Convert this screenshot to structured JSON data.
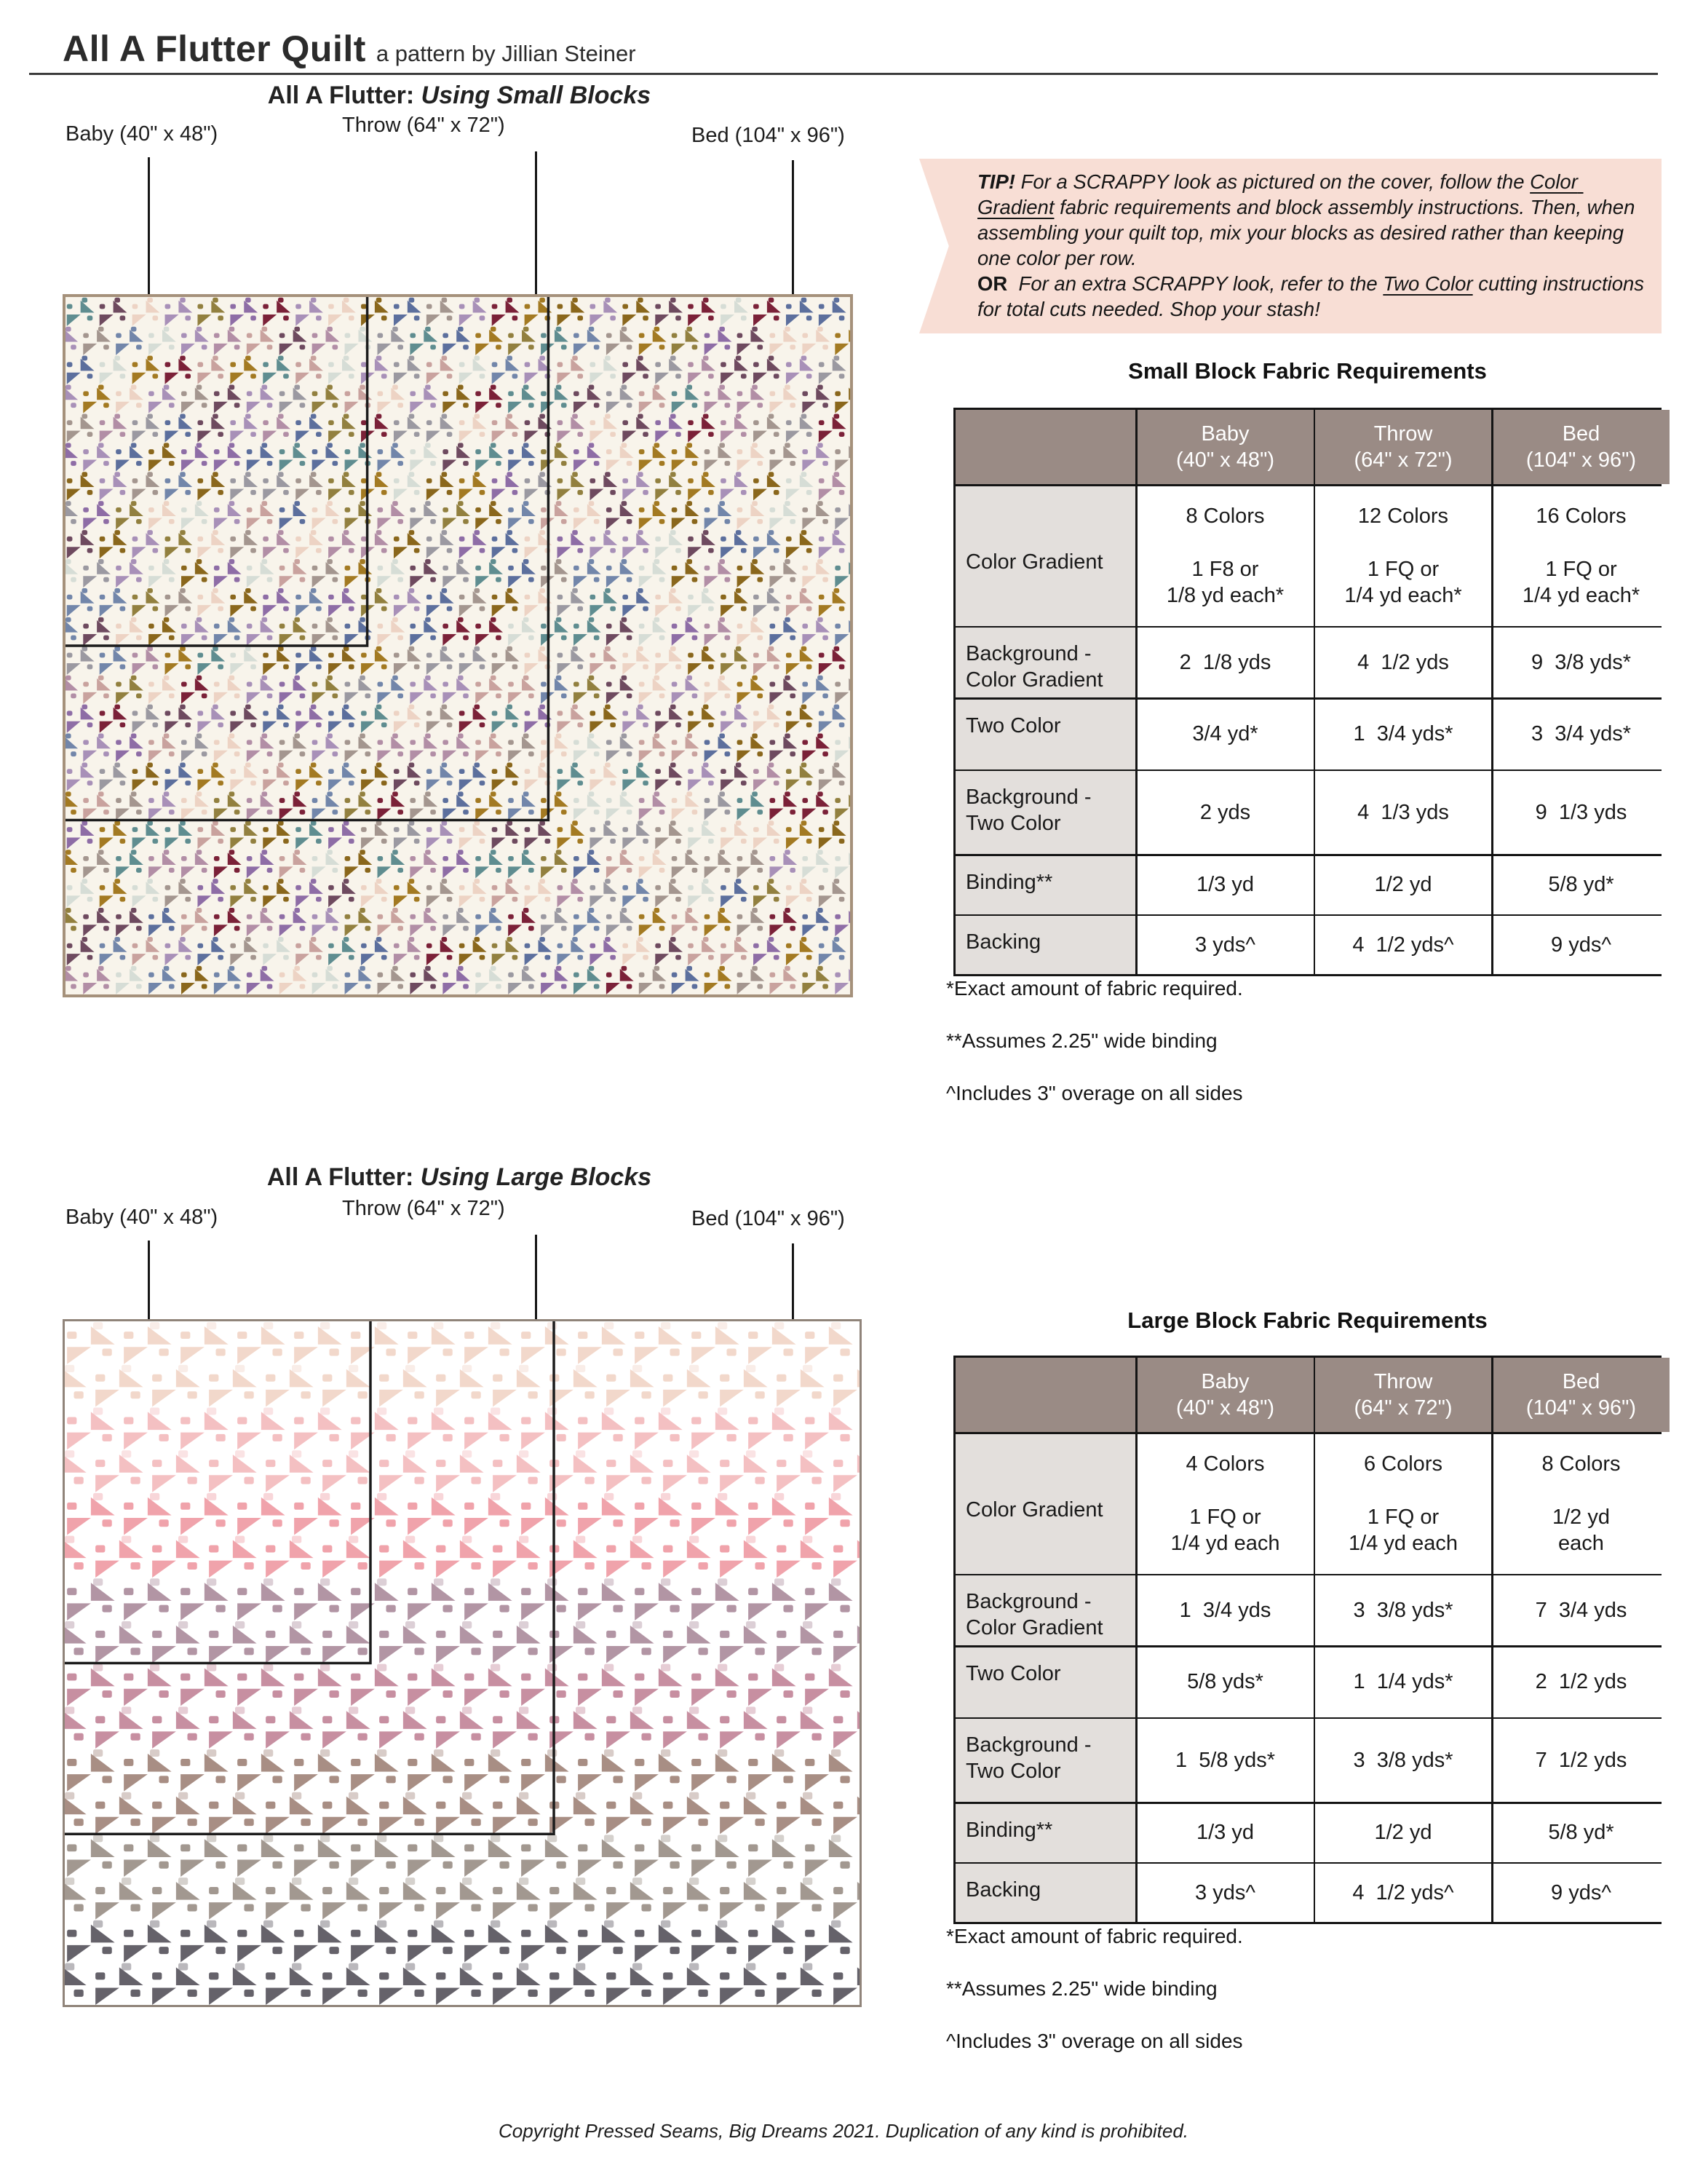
{
  "page": {
    "title": "All A Flutter Quilt",
    "subtitle": "a pattern by Jillian Steiner",
    "footer": "Copyright Pressed Seams, Big Dreams 2021. Duplication of any kind is prohibited."
  },
  "tip": {
    "bg": "#f8ded5",
    "segments": [
      {
        "text": "TIP!",
        "bold": true,
        "italic": true
      },
      {
        "text": " For a SCRAPPY look as pictured on the cover, follow the ",
        "italic": true
      },
      {
        "text": "Color Gradient",
        "italic": true,
        "underline": true
      },
      {
        "text": " fabric requirements and block assembly instructions. Then, when assembling your quilt top, mix your blocks as desired rather than keeping one color per row.\n",
        "italic": true
      },
      {
        "text": "OR",
        "bold": true
      },
      {
        "text": "  For an extra SCRAPPY look, refer to the ",
        "italic": true
      },
      {
        "text": "Two Color",
        "italic": true,
        "underline": true
      },
      {
        "text": " cutting instructions for total cuts needed. Shop your stash!",
        "italic": true
      }
    ]
  },
  "sections": {
    "small": {
      "heading_prefix": "All A Flutter: ",
      "heading_em": "Using Small Blocks",
      "labels": {
        "baby": "Baby (40\" x 48\")",
        "throw": "Throw (64\" x 72\")",
        "bed": "Bed (104\" x 96\")"
      }
    },
    "large": {
      "heading_prefix": "All A Flutter: ",
      "heading_em": "Using Large Blocks",
      "labels": {
        "baby": "Baby (40\" x 48\")",
        "throw": "Throw (64\" x 72\")",
        "bed": "Bed (104\" x 96\")"
      }
    }
  },
  "tables": {
    "small": {
      "title": "Small Block Fabric Requirements",
      "col_headers": [
        "Baby\n(40\" x 48\")",
        "Throw\n(64\" x 72\")",
        "Bed\n(104\" x 96\")"
      ],
      "rows": [
        {
          "label": "Color Gradient",
          "cells": [
            "8 Colors\n\n1 F8 or\n1/8 yd each*",
            "12 Colors\n\n1 FQ or\n1/4 yd each*",
            "16 Colors\n\n1 FQ or\n1/4 yd each*"
          ]
        },
        {
          "label": "Background -\nColor Gradient",
          "cells": [
            "2  1/8 yds",
            "4  1/2 yds",
            "9  3/8 yds*"
          ]
        },
        {
          "label": "Two Color",
          "cells": [
            "3/4 yd*",
            "1  3/4 yds*",
            "3  3/4 yds*"
          ]
        },
        {
          "label": "Background -\nTwo Color",
          "cells": [
            "2 yds",
            "4  1/3 yds",
            "9  1/3 yds"
          ]
        },
        {
          "label": "Binding**",
          "cells": [
            "1/3 yd",
            "1/2 yd",
            "5/8 yd*"
          ]
        },
        {
          "label": "Backing",
          "cells": [
            "3 yds^",
            "4  1/2 yds^",
            "9 yds^"
          ]
        }
      ],
      "footnotes": [
        "*Exact amount of fabric required.",
        "**Assumes 2.25\" wide binding",
        "^Includes 3\" overage on all sides"
      ]
    },
    "large": {
      "title": "Large Block Fabric Requirements",
      "col_headers": [
        "Baby\n(40\" x 48\")",
        "Throw\n(64\" x 72\")",
        "Bed\n(104\" x 96\")"
      ],
      "rows": [
        {
          "label": "Color Gradient",
          "cells": [
            "4 Colors\n\n1 FQ or\n1/4 yd each",
            "6 Colors\n\n1 FQ or\n1/4 yd each",
            "8 Colors\n\n1/2 yd\neach"
          ]
        },
        {
          "label": "Background -\nColor Gradient",
          "cells": [
            "1  3/4 yds",
            "3  3/8 yds*",
            "7  3/4 yds"
          ]
        },
        {
          "label": "Two Color",
          "cells": [
            "5/8 yds*",
            "1  1/4 yds*",
            "2  1/2 yds"
          ]
        },
        {
          "label": "Background -\nTwo Color",
          "cells": [
            "1  5/8 yds*",
            "3  3/8 yds*",
            "7  1/2 yds"
          ]
        },
        {
          "label": "Binding**",
          "cells": [
            "1/3 yd",
            "1/2 yd",
            "5/8 yd*"
          ]
        },
        {
          "label": "Backing",
          "cells": [
            "3 yds^",
            "4  1/2 yds^",
            "9 yds^"
          ]
        }
      ],
      "footnotes": [
        "*Exact amount of fabric required.",
        "**Assumes 2.25\" wide binding",
        "^Includes 3\" overage on all sides"
      ]
    }
  },
  "quilts": {
    "small": {
      "style": "scrappy",
      "columns": 24,
      "rows": 24,
      "background": "#f8f4eb",
      "border_color": "#a5917b",
      "palette": [
        "#5f8d90",
        "#7286aa",
        "#5c6f9d",
        "#7b2138",
        "#8a671c",
        "#a37a22",
        "#92803f",
        "#8e6da6",
        "#a890b8",
        "#b28ea6",
        "#c9a29e",
        "#edd3c4",
        "#a4968f",
        "#9b99a1",
        "#d6ddd6",
        "#6e4a5f"
      ],
      "tint_squares": false,
      "overlay_color": "#1c1c1c"
    },
    "large": {
      "style": "gradient",
      "columns": 14,
      "rows": 16,
      "background": "#ffffff",
      "border_color": "#90847a",
      "row_colors": [
        "#f2d8cb",
        "#f4c0c2",
        "#f0a3ab",
        "#b295a4",
        "#c78fa1",
        "#a88e84",
        "#a29890",
        "#65626a"
      ],
      "tint_squares": true,
      "overlay_color": "#1c1c1c"
    },
    "overlays": [
      {
        "name": "baby-outline",
        "w": 0.3846,
        "h": 0.5
      },
      {
        "name": "throw-outline",
        "w": 0.6154,
        "h": 0.75
      }
    ]
  }
}
